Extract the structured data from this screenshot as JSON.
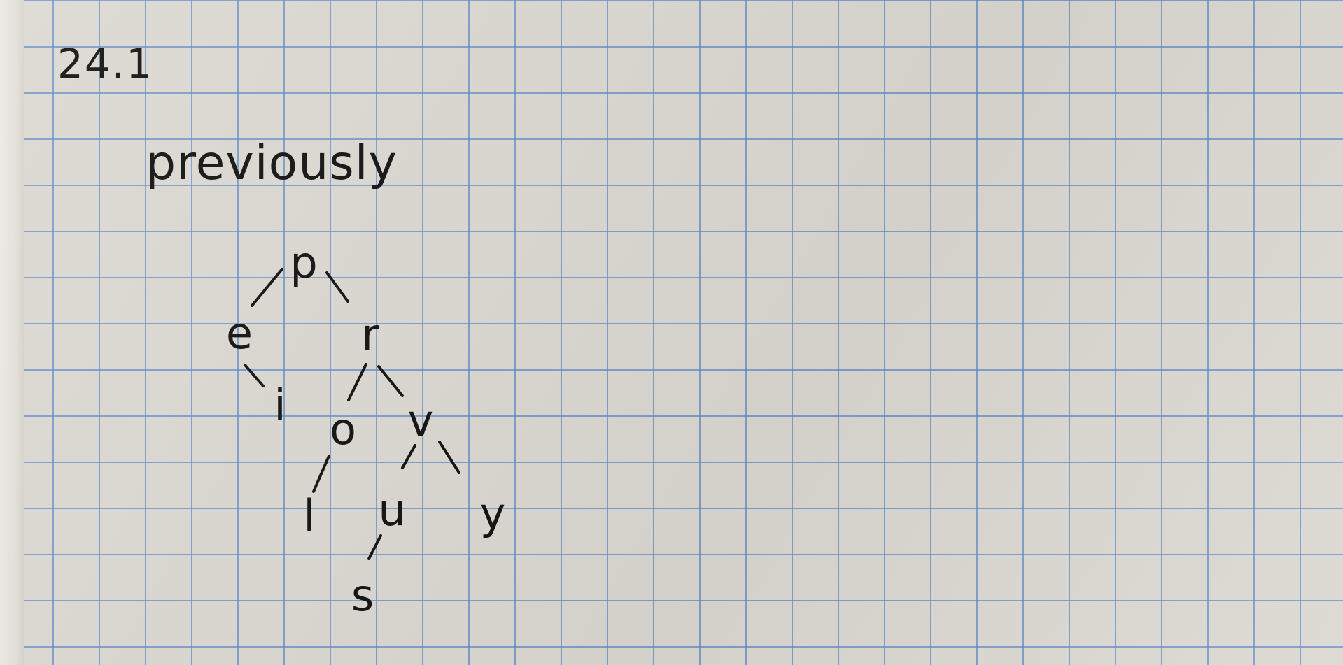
{
  "heading": "24.1",
  "word": "previously",
  "tree": {
    "nodes": [
      {
        "id": "p",
        "label": "p"
      },
      {
        "id": "e",
        "label": "e"
      },
      {
        "id": "r",
        "label": "r"
      },
      {
        "id": "i",
        "label": "i"
      },
      {
        "id": "o",
        "label": "o"
      },
      {
        "id": "v",
        "label": "v"
      },
      {
        "id": "l",
        "label": "l"
      },
      {
        "id": "u",
        "label": "u"
      },
      {
        "id": "y",
        "label": "y"
      },
      {
        "id": "s",
        "label": "s"
      }
    ],
    "edges": [
      [
        "p",
        "e"
      ],
      [
        "p",
        "r"
      ],
      [
        "e",
        "i"
      ],
      [
        "r",
        "o"
      ],
      [
        "r",
        "v"
      ],
      [
        "o",
        "l"
      ],
      [
        "v",
        "u"
      ],
      [
        "v",
        "y"
      ],
      [
        "u",
        "s"
      ]
    ]
  },
  "colors": {
    "ink": "#111111",
    "paper": "#dcd9d2",
    "grid": "#608cc8"
  }
}
